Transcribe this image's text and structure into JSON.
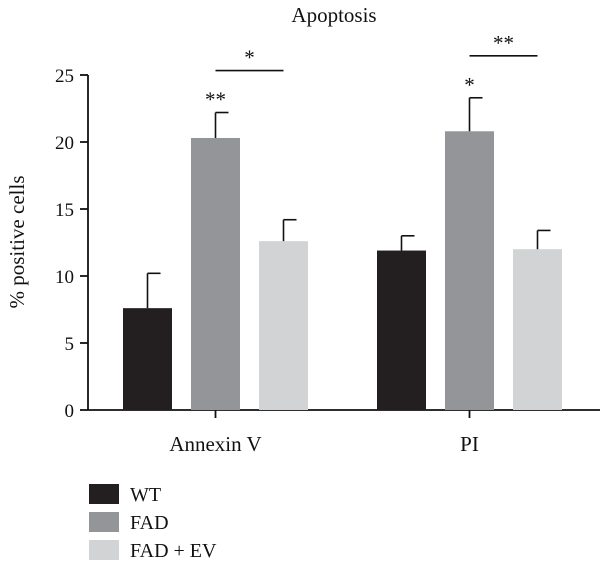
{
  "chart_data": {
    "type": "bar",
    "title": "Apoptosis",
    "xlabel": "",
    "ylabel": "% positive cells",
    "ylim": [
      0,
      25
    ],
    "yticks": [
      0,
      5,
      10,
      15,
      20,
      25
    ],
    "grid": false,
    "legend_position": "bottom-left",
    "categories": [
      "Annexin V",
      "PI"
    ],
    "series": [
      {
        "name": "WT",
        "color": "#231f20",
        "values": [
          7.6,
          11.9
        ],
        "errors": [
          2.6,
          1.1
        ],
        "sig": [
          "",
          ""
        ]
      },
      {
        "name": "FAD",
        "color": "#939598",
        "values": [
          20.3,
          20.8
        ],
        "errors": [
          1.9,
          2.5
        ],
        "sig": [
          "**",
          "*"
        ]
      },
      {
        "name": "FAD + EV",
        "color": "#d1d3d4",
        "values": [
          12.6,
          12.0
        ],
        "errors": [
          1.6,
          1.4
        ],
        "sig": [
          "",
          ""
        ]
      }
    ],
    "comparisons": [
      {
        "category": 0,
        "from": 1,
        "to": 2,
        "label": "*"
      },
      {
        "category": 1,
        "from": 1,
        "to": 2,
        "label": "**"
      }
    ]
  }
}
